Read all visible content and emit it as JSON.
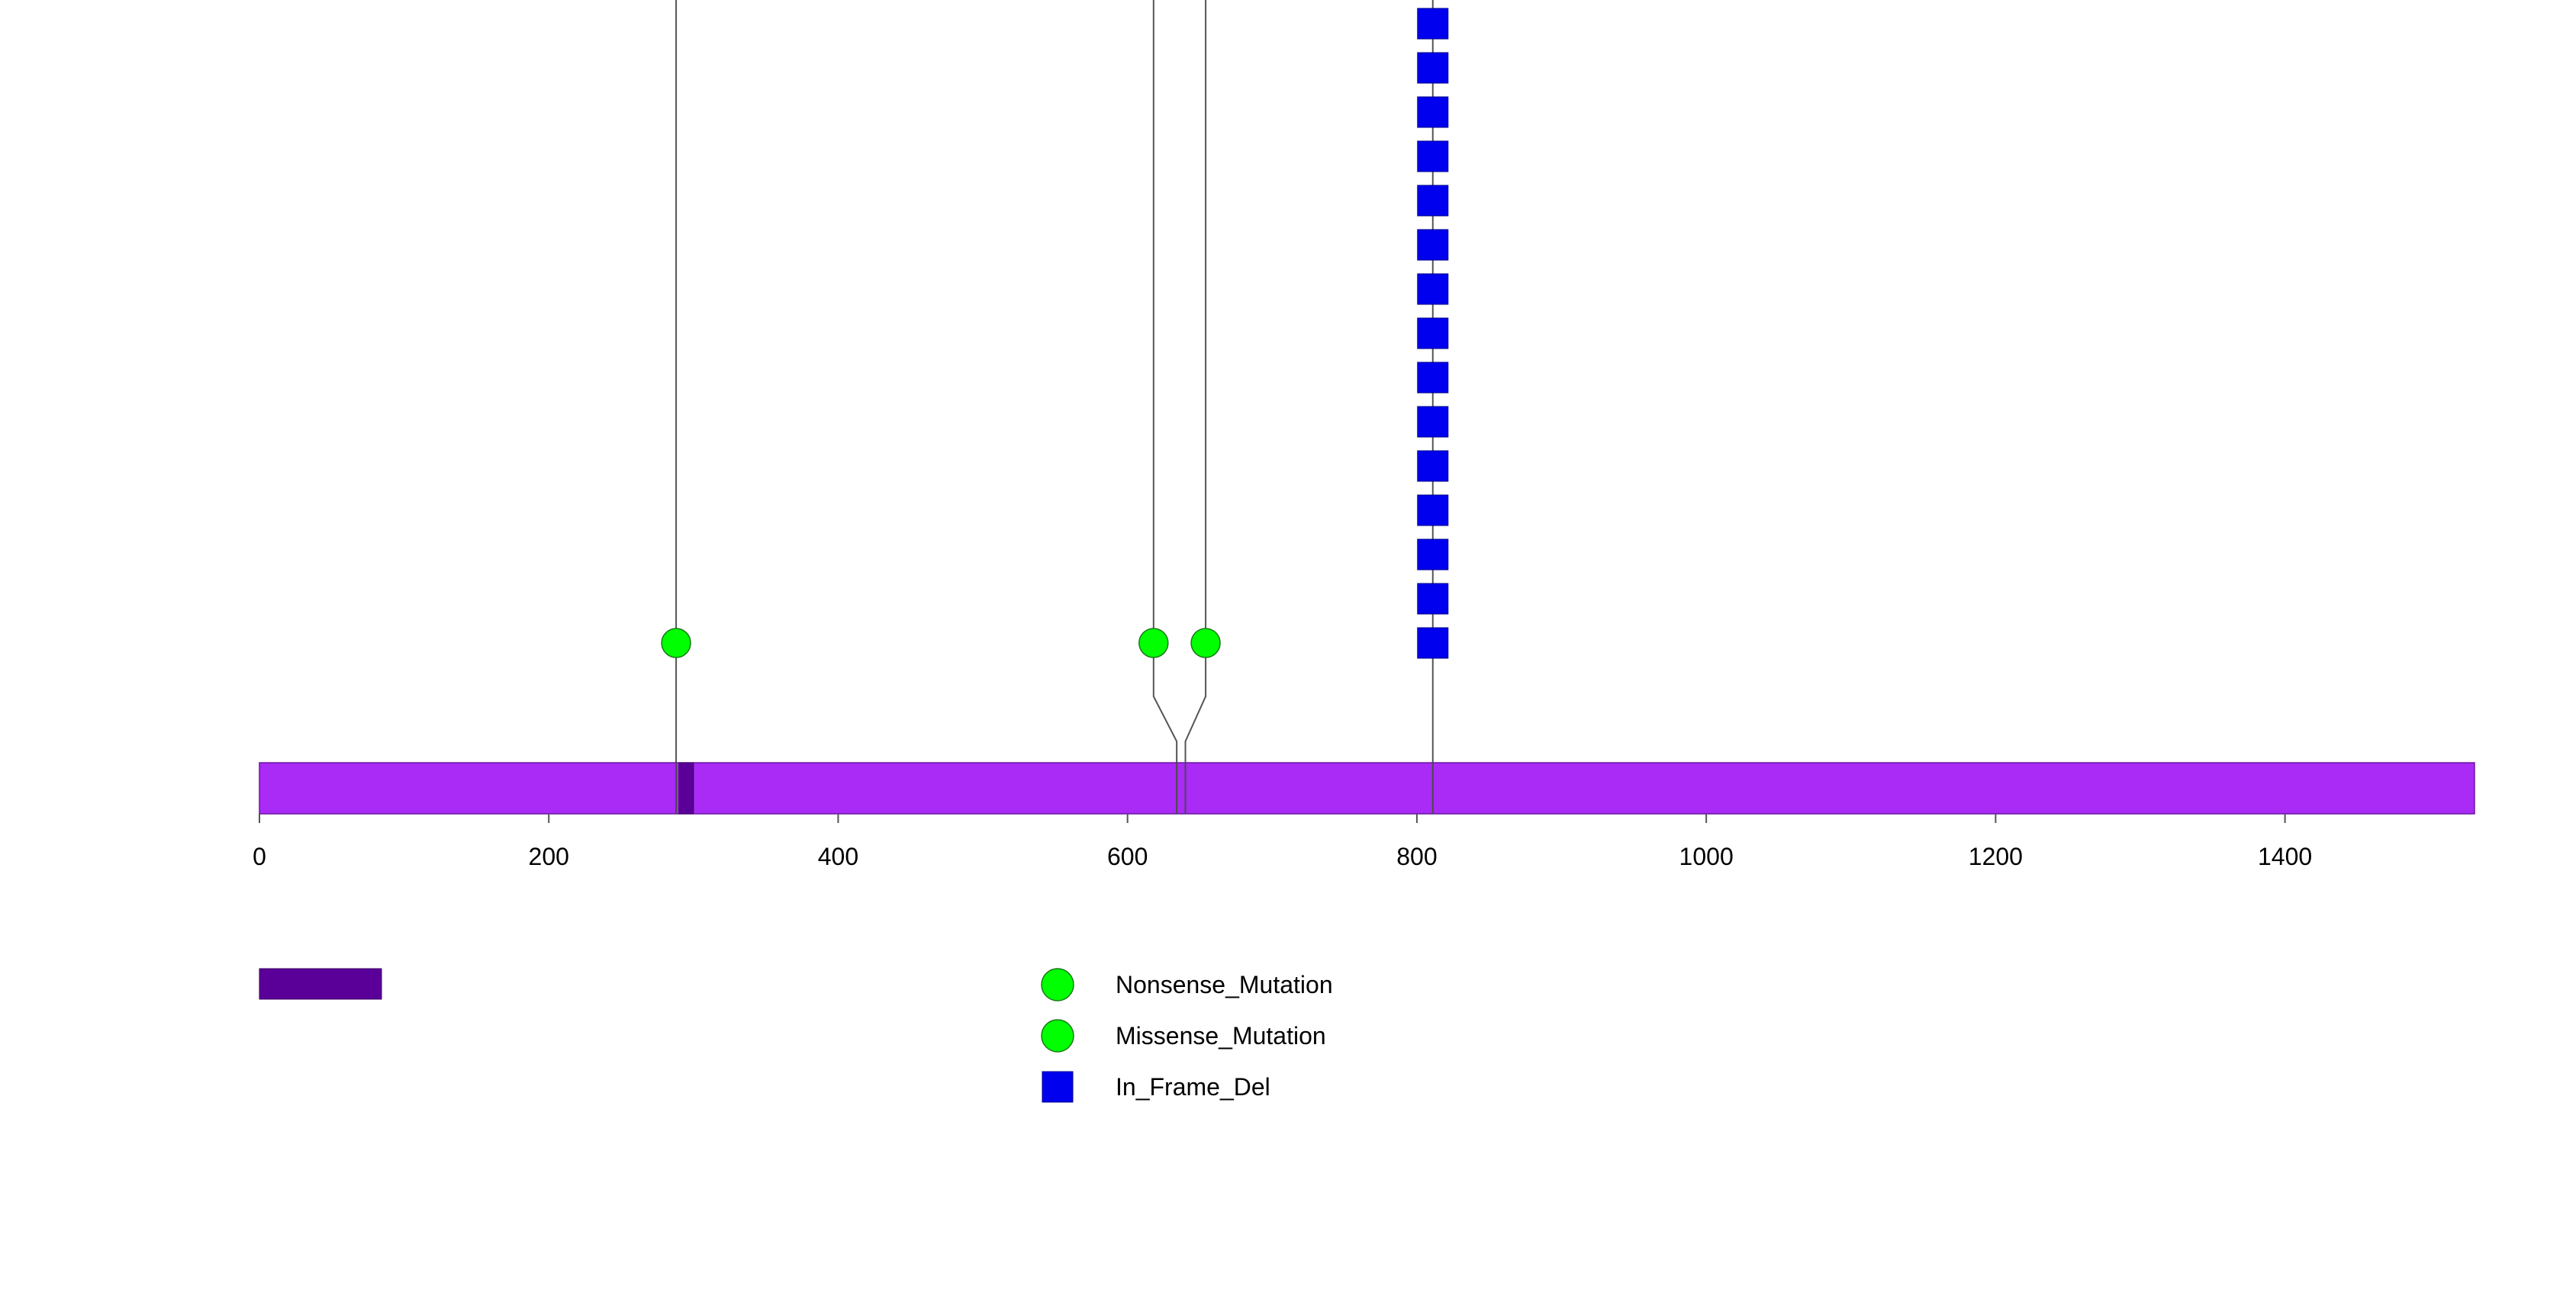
{
  "chart_data": {
    "type": "lollipop",
    "title": "",
    "xlabel": "",
    "ylabel": "",
    "xlim": [
      0,
      1531
    ],
    "x_ticks": [
      0,
      200,
      400,
      600,
      800,
      1000,
      1200,
      1400
    ],
    "x_tick_labels": [
      "0",
      "200",
      "400",
      "600",
      "800",
      "1000",
      "1200",
      "1400"
    ],
    "protein": {
      "start": 0,
      "end": 1531,
      "color": "#aa2af6"
    },
    "domains": [
      {
        "start": 290,
        "end": 300,
        "color": "#5a0099"
      }
    ],
    "mutations": [
      {
        "position": 288,
        "count": 1,
        "type": "Missense_Mutation",
        "anchor": 288
      },
      {
        "position": 618,
        "count": 1,
        "type": "Missense_Mutation",
        "anchor": 634
      },
      {
        "position": 654,
        "count": 1,
        "type": "Nonsense_Mutation",
        "anchor": 640
      },
      {
        "position": 811,
        "count": 15,
        "type": "In_Frame_Del",
        "anchor": 811
      }
    ],
    "legend": {
      "domains": [
        {
          "label": "",
          "color": "#5a0099"
        }
      ],
      "mutation_types": [
        {
          "label": "Nonsense_Mutation",
          "color": "#00ff00",
          "shape": "circle"
        },
        {
          "label": "Missense_Mutation",
          "color": "#00ff00",
          "shape": "circle"
        },
        {
          "label": "In_Frame_Del",
          "color": "#0000ee",
          "shape": "square"
        }
      ]
    }
  }
}
